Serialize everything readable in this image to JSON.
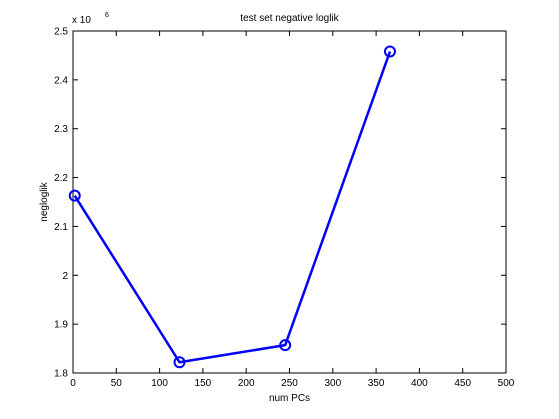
{
  "chart_data": {
    "type": "line",
    "title": "test set negative loglik",
    "xlabel": "num PCs",
    "ylabel": "negloglik",
    "y_scale_exponent_label": "x 10",
    "y_scale_exponent": "6",
    "xlim": [
      0,
      500
    ],
    "ylim": [
      1.8,
      2.5
    ],
    "x_ticks": [
      "0",
      "50",
      "100",
      "150",
      "200",
      "250",
      "300",
      "350",
      "400",
      "450",
      "500"
    ],
    "y_ticks": [
      "1.8",
      "1.9",
      "2",
      "2.1",
      "2.2",
      "2.3",
      "2.4",
      "2.5"
    ],
    "grid": false,
    "line_color": "#0000ff",
    "marker": "circle",
    "series": [
      {
        "x": [
          2,
          123,
          245,
          366
        ],
        "y": [
          2.163,
          1.822,
          1.857,
          2.458
        ]
      }
    ]
  }
}
